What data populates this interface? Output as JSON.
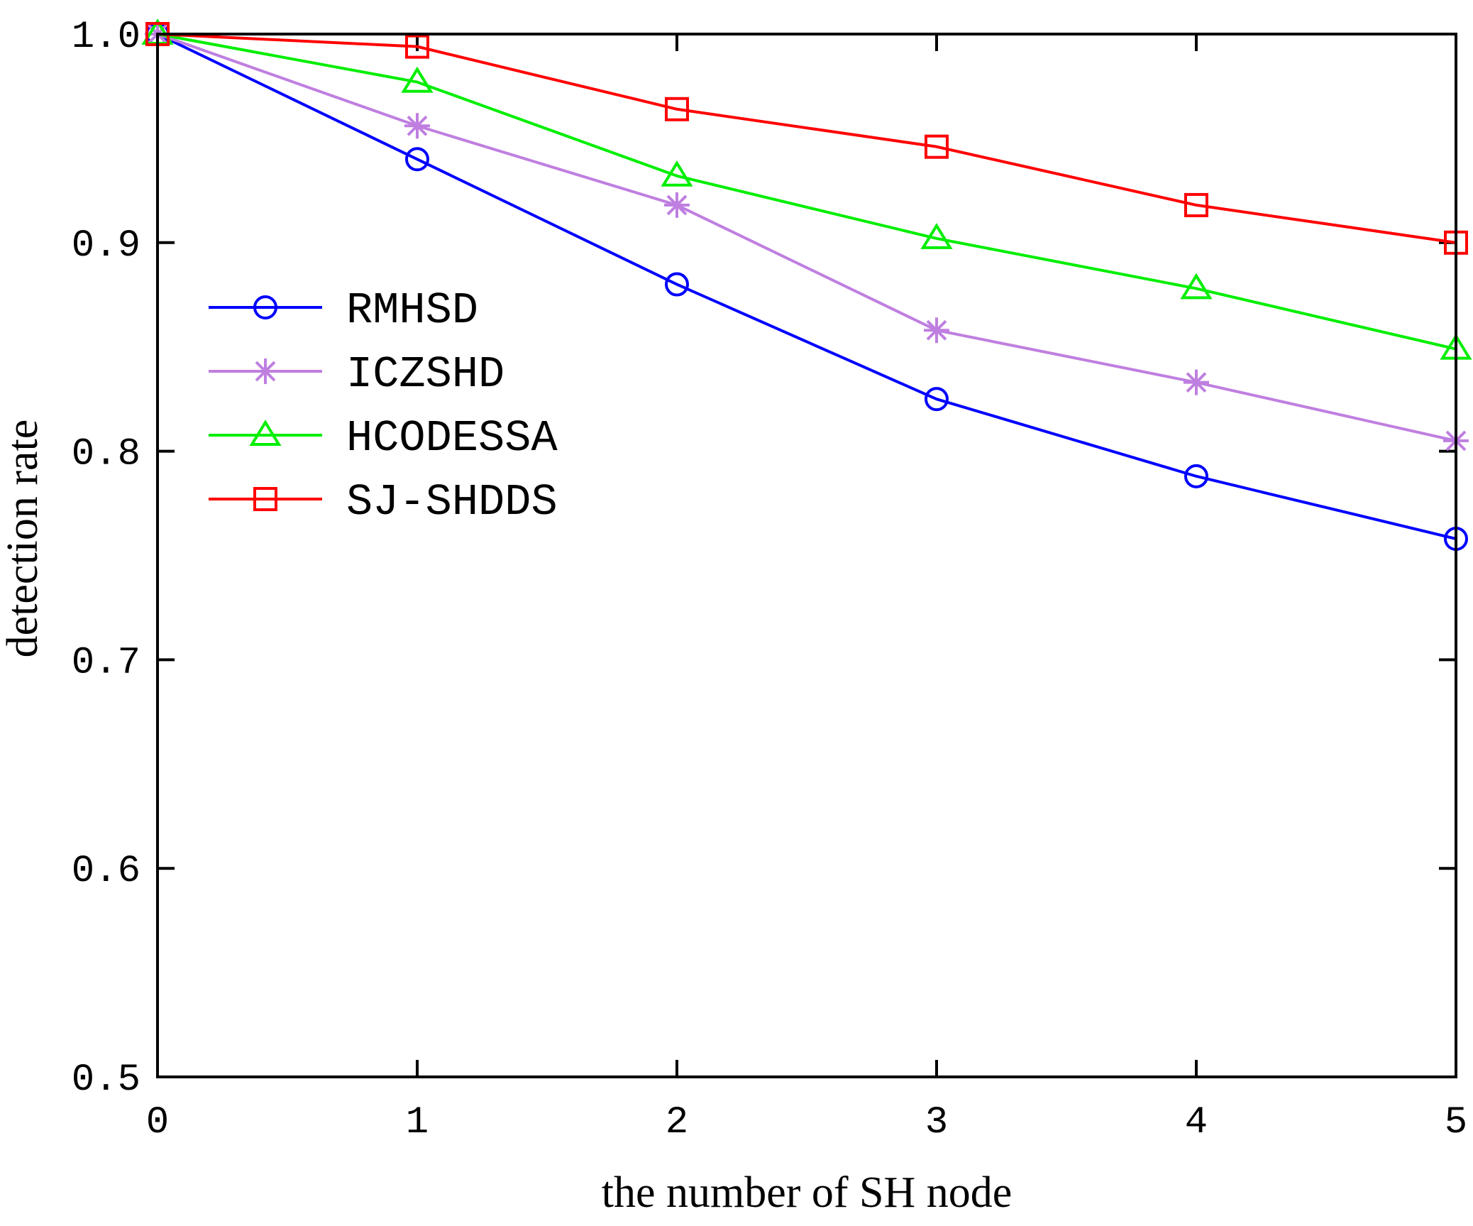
{
  "chart_data": {
    "type": "line",
    "title": "",
    "xlabel": "the number of SH node",
    "ylabel": "detection rate",
    "x": [
      0,
      1,
      2,
      3,
      4,
      5
    ],
    "xlim": [
      0,
      5
    ],
    "ylim": [
      0.5,
      1.0
    ],
    "xticks": [
      0,
      1,
      2,
      3,
      4,
      5
    ],
    "xtick_labels": [
      "0",
      "1",
      "2",
      "3",
      "4",
      "5"
    ],
    "yticks": [
      0.5,
      0.6,
      0.7,
      0.8,
      0.9,
      1.0
    ],
    "ytick_labels": [
      "0.5",
      "0.6",
      "0.7",
      "0.8",
      "0.9",
      "1.0"
    ],
    "grid": false,
    "legend_position": "middle-left",
    "series": [
      {
        "name": "RMHSD",
        "color": "#0000ff",
        "marker": "circle",
        "values": [
          1.0,
          0.94,
          0.88,
          0.825,
          0.788,
          0.758
        ]
      },
      {
        "name": "ICZSHD",
        "color": "#bf7fe0",
        "marker": "asterisk",
        "values": [
          1.0,
          0.956,
          0.918,
          0.858,
          0.833,
          0.805
        ]
      },
      {
        "name": "HCODESSA",
        "color": "#00ee00",
        "marker": "triangle",
        "values": [
          1.0,
          0.977,
          0.932,
          0.902,
          0.878,
          0.849
        ]
      },
      {
        "name": "SJ-SHDDS",
        "color": "#ff0000",
        "marker": "square",
        "values": [
          1.0,
          0.994,
          0.964,
          0.946,
          0.918,
          0.9
        ]
      }
    ]
  }
}
